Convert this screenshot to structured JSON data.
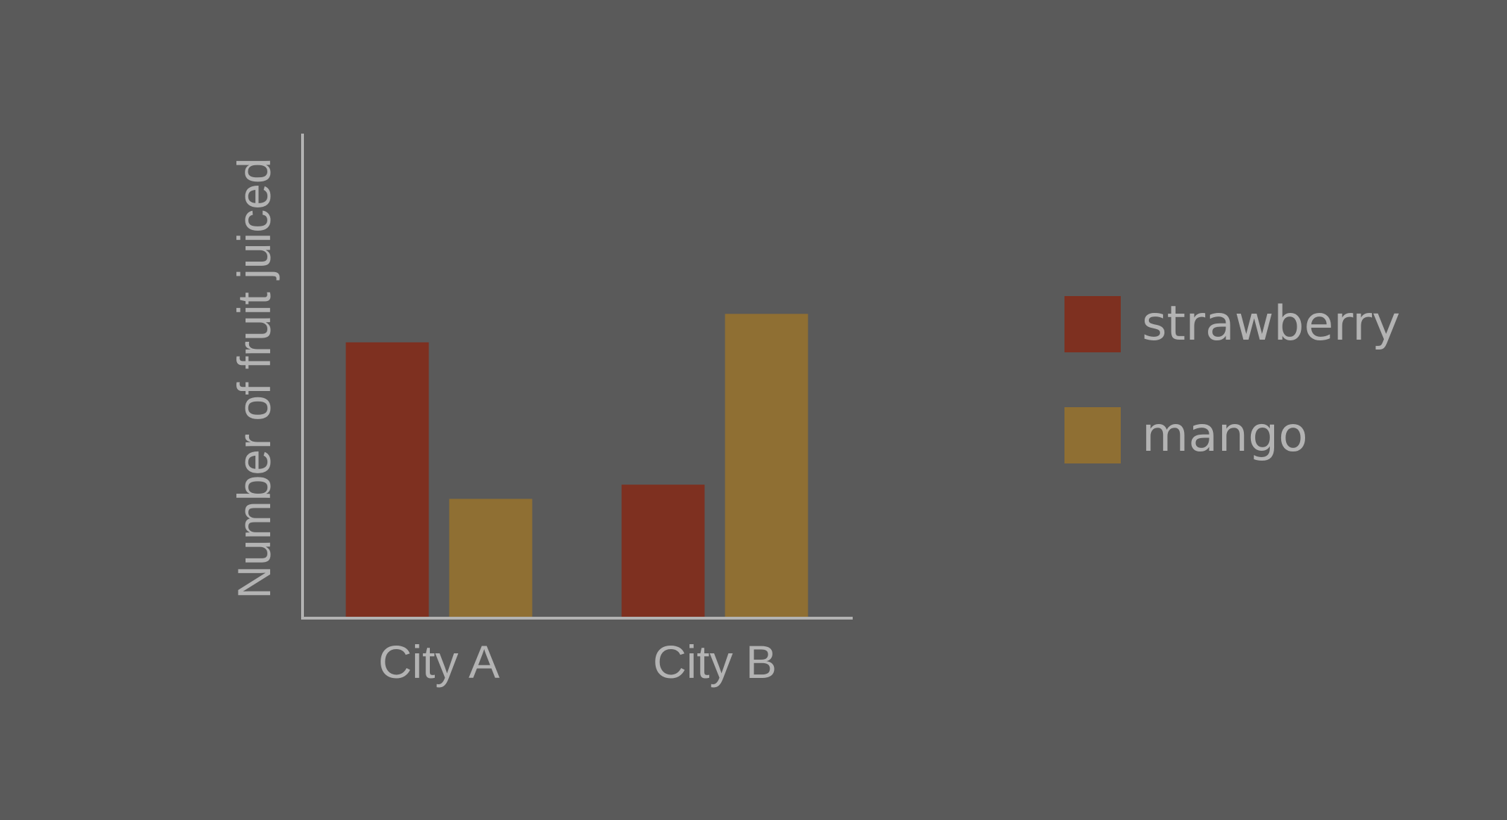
{
  "chart_data": {
    "type": "bar",
    "title": "",
    "xlabel": "",
    "ylabel": "Number of fruit juiced",
    "categories": [
      "City A",
      "City B"
    ],
    "series": [
      {
        "name": "strawberry",
        "color": "#7e3020",
        "values": [
          58,
          28
        ]
      },
      {
        "name": "mango",
        "color": "#8f6f33",
        "values": [
          25,
          64
        ]
      }
    ],
    "ylim": [
      0,
      102
    ],
    "grid": false,
    "yticks_shown": false,
    "legend_position": "right",
    "axis_color": "#b3b3b3",
    "background_color": "#5a5a5a"
  }
}
